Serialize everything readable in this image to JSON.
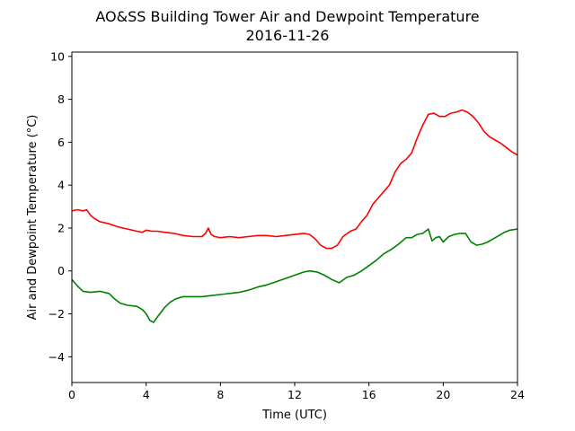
{
  "chart_data": {
    "type": "line",
    "title": "AO&SS Building Tower Air and Dewpoint Temperature",
    "subtitle": "2016-11-26",
    "xlabel": "Time (UTC)",
    "ylabel": "Air and Dewpoint Temperature (°C)",
    "xlim": [
      0,
      24
    ],
    "ylim": [
      -5.2,
      10.2
    ],
    "xticks": [
      0,
      4,
      8,
      12,
      16,
      20,
      24
    ],
    "yticks": [
      -4,
      -2,
      0,
      2,
      4,
      6,
      8,
      10
    ],
    "grid": false,
    "legend": "none",
    "series": [
      {
        "color": "#ff0000",
        "x": [
          0,
          0.3,
          0.6,
          0.8,
          1.0,
          1.2,
          1.5,
          2.0,
          2.5,
          3.0,
          3.5,
          3.8,
          4.0,
          4.3,
          4.6,
          5.0,
          5.5,
          6.0,
          6.5,
          7.0,
          7.2,
          7.35,
          7.5,
          7.7,
          8.0,
          8.5,
          9.0,
          9.5,
          10.0,
          10.5,
          11.0,
          11.5,
          12.0,
          12.5,
          12.8,
          13.1,
          13.4,
          13.7,
          14.0,
          14.3,
          14.6,
          15.0,
          15.3,
          15.6,
          15.9,
          16.2,
          16.5,
          16.8,
          17.1,
          17.4,
          17.7,
          18.0,
          18.3,
          18.6,
          18.9,
          19.2,
          19.5,
          19.8,
          20.1,
          20.4,
          20.7,
          21.0,
          21.3,
          21.6,
          21.9,
          22.2,
          22.5,
          22.8,
          23.1,
          23.4,
          23.7,
          24.0
        ],
        "values": [
          2.8,
          2.85,
          2.8,
          2.85,
          2.6,
          2.45,
          2.3,
          2.2,
          2.05,
          1.95,
          1.85,
          1.8,
          1.9,
          1.85,
          1.85,
          1.8,
          1.75,
          1.65,
          1.6,
          1.6,
          1.75,
          2.0,
          1.7,
          1.6,
          1.55,
          1.6,
          1.55,
          1.6,
          1.65,
          1.65,
          1.6,
          1.65,
          1.7,
          1.75,
          1.7,
          1.5,
          1.2,
          1.05,
          1.05,
          1.2,
          1.6,
          1.85,
          1.95,
          2.3,
          2.6,
          3.1,
          3.4,
          3.7,
          4.0,
          4.6,
          5.0,
          5.2,
          5.5,
          6.2,
          6.8,
          7.3,
          7.35,
          7.2,
          7.2,
          7.35,
          7.4,
          7.5,
          7.4,
          7.2,
          6.9,
          6.5,
          6.25,
          6.1,
          5.95,
          5.75,
          5.55,
          5.4
        ]
      },
      {
        "color": "#008000",
        "x": [
          0,
          0.3,
          0.6,
          1.0,
          1.5,
          2.0,
          2.3,
          2.6,
          3.0,
          3.5,
          3.8,
          4.0,
          4.2,
          4.4,
          4.6,
          5.0,
          5.3,
          5.6,
          6.0,
          6.5,
          7.0,
          7.5,
          8.0,
          8.5,
          9.0,
          9.5,
          10.0,
          10.5,
          11.0,
          11.5,
          12.0,
          12.5,
          12.8,
          13.2,
          13.6,
          14.0,
          14.4,
          14.8,
          15.2,
          15.6,
          16.0,
          16.4,
          16.8,
          17.2,
          17.6,
          18.0,
          18.3,
          18.6,
          18.9,
          19.2,
          19.4,
          19.6,
          19.8,
          20.0,
          20.3,
          20.6,
          20.9,
          21.2,
          21.5,
          21.8,
          22.1,
          22.4,
          22.7,
          23.0,
          23.3,
          23.6,
          24.0
        ],
        "values": [
          -0.4,
          -0.7,
          -0.95,
          -1.0,
          -0.95,
          -1.05,
          -1.3,
          -1.5,
          -1.6,
          -1.65,
          -1.8,
          -2.0,
          -2.3,
          -2.4,
          -2.15,
          -1.7,
          -1.45,
          -1.3,
          -1.2,
          -1.2,
          -1.2,
          -1.15,
          -1.1,
          -1.05,
          -1.0,
          -0.9,
          -0.75,
          -0.65,
          -0.5,
          -0.35,
          -0.2,
          -0.05,
          0.0,
          -0.05,
          -0.2,
          -0.4,
          -0.55,
          -0.3,
          -0.2,
          0.0,
          0.25,
          0.5,
          0.8,
          1.0,
          1.25,
          1.55,
          1.55,
          1.7,
          1.75,
          1.95,
          1.4,
          1.55,
          1.6,
          1.35,
          1.6,
          1.7,
          1.75,
          1.75,
          1.35,
          1.2,
          1.25,
          1.35,
          1.5,
          1.65,
          1.8,
          1.9,
          1.95
        ]
      }
    ]
  }
}
